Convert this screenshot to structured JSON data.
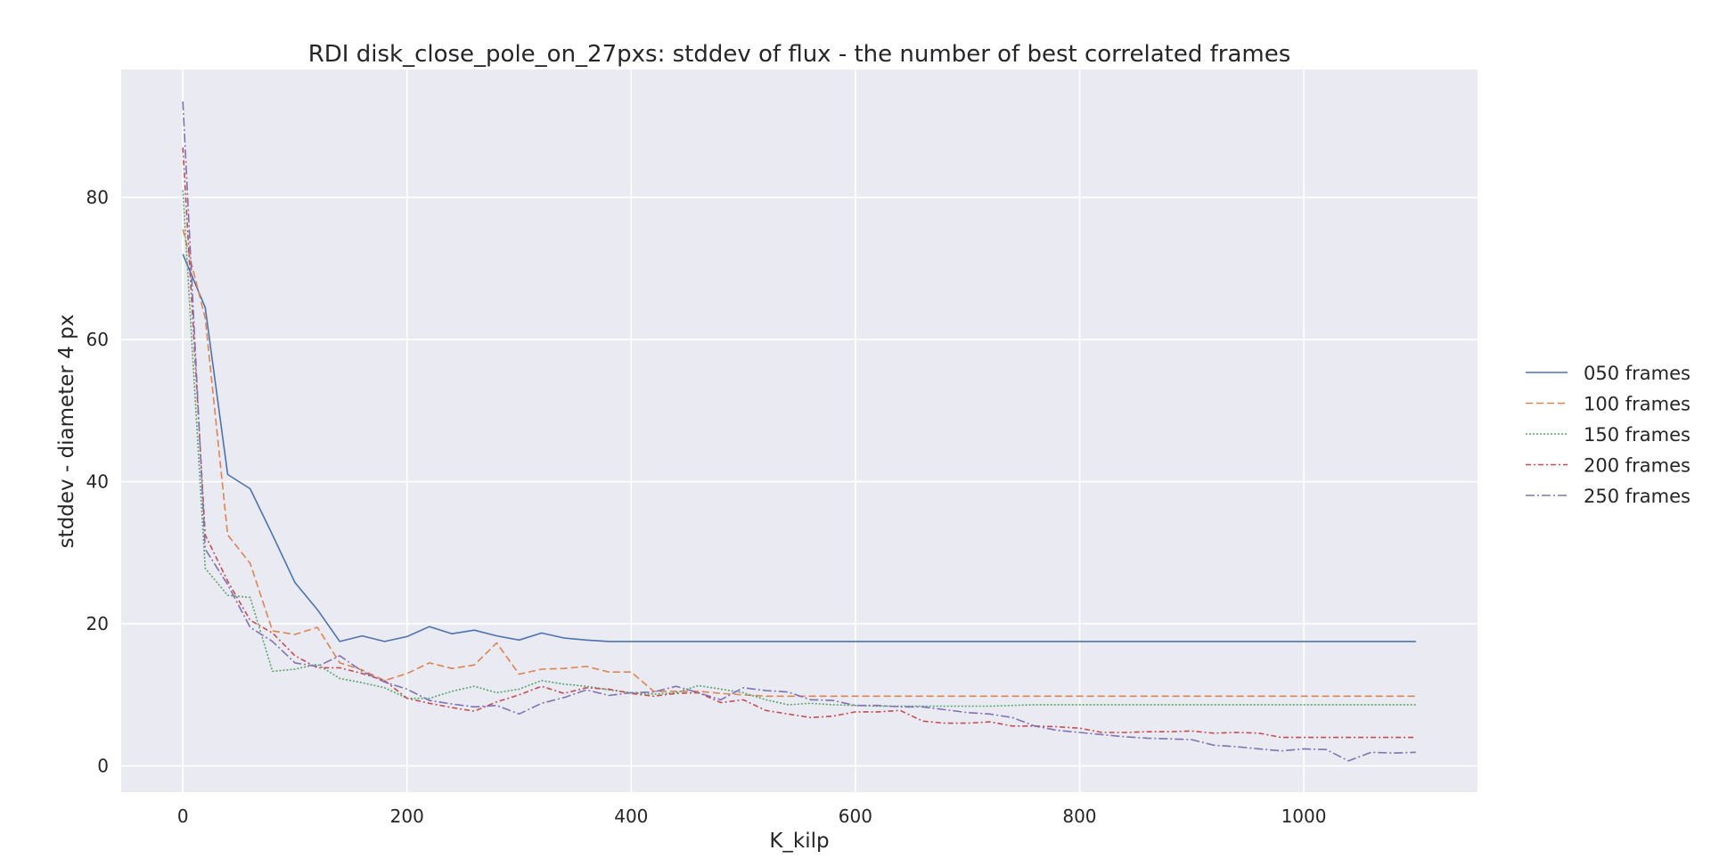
{
  "chart_data": {
    "type": "line",
    "title": "RDI disk_close_pole_on_27pxs: stddev of flux - the number of best correlated frames",
    "xlabel": "K_kilp",
    "ylabel": "stddev - diameter 4 px",
    "xlim": [
      -55,
      1155
    ],
    "ylim": [
      -3.7,
      98
    ],
    "xticks": [
      0,
      200,
      400,
      600,
      800,
      1000
    ],
    "yticks": [
      0,
      20,
      40,
      60,
      80
    ],
    "grid": true,
    "background": "#eaeaf2",
    "legend_position": "right",
    "x": [
      0,
      20,
      40,
      60,
      80,
      100,
      120,
      140,
      160,
      180,
      200,
      220,
      240,
      260,
      280,
      300,
      320,
      340,
      360,
      380,
      400,
      420,
      440,
      460,
      480,
      500,
      520,
      540,
      560,
      580,
      600,
      620,
      640,
      660,
      680,
      700,
      720,
      740,
      760,
      780,
      800,
      820,
      840,
      860,
      880,
      900,
      920,
      940,
      960,
      980,
      1000,
      1020,
      1040,
      1060,
      1080,
      1100
    ],
    "series": [
      {
        "name": "050 frames",
        "color": "#4c72b0",
        "dash": "",
        "values": [
          72,
          64.5,
          41,
          39,
          32.5,
          25.8,
          22,
          17.5,
          18.3,
          17.5,
          18.2,
          19.6,
          18.6,
          19.1,
          18.3,
          17.7,
          18.7,
          18,
          17.7,
          17.5,
          17.5,
          17.5,
          17.5,
          17.5,
          17.5,
          17.5,
          17.5,
          17.5,
          17.5,
          17.5,
          17.5,
          17.5,
          17.5,
          17.5,
          17.5,
          17.5,
          17.5,
          17.5,
          17.5,
          17.5,
          17.5,
          17.5,
          17.5,
          17.5,
          17.5,
          17.5,
          17.5,
          17.5,
          17.5,
          17.5,
          17.5,
          17.5,
          17.5,
          17.5,
          17.5,
          17.5
        ]
      },
      {
        "name": "100 frames",
        "color": "#dd8452",
        "dash": "8,4",
        "values": [
          75.5,
          63,
          32.5,
          28.5,
          19,
          18.5,
          19.5,
          14.5,
          13.5,
          12,
          13,
          14.5,
          13.7,
          14.2,
          17.3,
          12.9,
          13.6,
          13.7,
          14,
          13.2,
          13.2,
          10.5,
          10.5,
          10.5,
          10.2,
          10,
          9.8,
          9.8,
          9.8,
          9.8,
          9.8,
          9.8,
          9.8,
          9.8,
          9.8,
          9.8,
          9.8,
          9.8,
          9.8,
          9.8,
          9.8,
          9.8,
          9.8,
          9.8,
          9.8,
          9.8,
          9.8,
          9.8,
          9.8,
          9.8,
          9.8,
          9.8,
          9.8,
          9.8,
          9.8,
          9.8
        ]
      },
      {
        "name": "150 frames",
        "color": "#55a868",
        "dash": "2,2",
        "values": [
          81,
          27.8,
          24,
          23.7,
          13.3,
          13.6,
          14.3,
          12.3,
          11.7,
          11,
          9.5,
          9.5,
          10.5,
          11.2,
          10.3,
          10.8,
          12,
          11.5,
          11.2,
          10.7,
          10.3,
          10.1,
          10.3,
          11.3,
          10.8,
          10.3,
          9.3,
          8.6,
          8.8,
          8.6,
          8.5,
          8.4,
          8.4,
          8.4,
          8.4,
          8.4,
          8.4,
          8.5,
          8.6,
          8.6,
          8.6,
          8.6,
          8.6,
          8.6,
          8.6,
          8.6,
          8.6,
          8.6,
          8.6,
          8.6,
          8.6,
          8.6,
          8.6,
          8.6,
          8.6,
          8.6
        ]
      },
      {
        "name": "200 frames",
        "color": "#c44e52",
        "dash": "6,3,2,3",
        "values": [
          87,
          32.5,
          26,
          20.5,
          18.7,
          15.5,
          13.8,
          13.8,
          13,
          12,
          9.5,
          8.8,
          8.2,
          7.7,
          9,
          10,
          11.2,
          10.2,
          11,
          10.8,
          10.2,
          9.8,
          10.2,
          10.3,
          8.9,
          9.3,
          7.8,
          7.3,
          6.8,
          7,
          7.6,
          7.6,
          7.8,
          6.3,
          6,
          6,
          6.2,
          5.6,
          5.6,
          5.5,
          5.3,
          4.7,
          4.7,
          4.8,
          4.8,
          4.9,
          4.6,
          4.7,
          4.6,
          4,
          4,
          4,
          4,
          4,
          4,
          4
        ]
      },
      {
        "name": "250 frames",
        "color": "#8172b3",
        "dash": "10,3,2,3",
        "values": [
          93.5,
          30.5,
          25.5,
          19.5,
          17.5,
          14.5,
          14,
          15.5,
          13.3,
          11.8,
          10.8,
          9.2,
          8.7,
          8.3,
          8.5,
          7.3,
          8.8,
          9.6,
          10.7,
          9.9,
          10.3,
          10.4,
          11.2,
          10.3,
          9.3,
          11,
          10.6,
          10.4,
          9.3,
          9.2,
          8.5,
          8.5,
          8.3,
          8.3,
          7.9,
          7.5,
          7.3,
          6.8,
          5.6,
          5,
          4.7,
          4.4,
          4.1,
          3.9,
          3.8,
          3.7,
          2.9,
          2.7,
          2.4,
          2.1,
          2.4,
          2.3,
          0.7,
          1.9,
          1.8,
          1.9
        ]
      }
    ]
  }
}
